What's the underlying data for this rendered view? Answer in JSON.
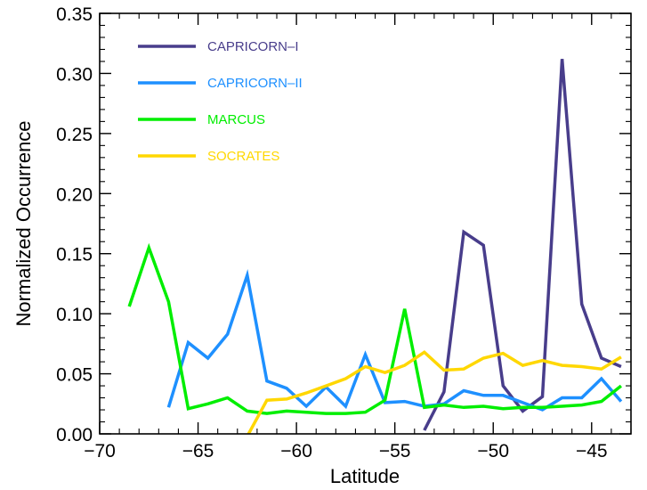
{
  "chart_data": {
    "type": "line",
    "xlabel": "Latitude",
    "ylabel": "Normalized Occurrence",
    "xlim": [
      -70,
      -43
    ],
    "ylim": [
      0,
      0.35
    ],
    "xticks": [
      "−70",
      "−65",
      "−60",
      "−55",
      "−50",
      "−45"
    ],
    "yticks": [
      "0.00",
      "0.05",
      "0.10",
      "0.15",
      "0.20",
      "0.25",
      "0.30",
      "0.35"
    ],
    "grid": false,
    "legend_position": "top-left",
    "series": [
      {
        "name": "CAPRICORN–I",
        "color": "#483d8b",
        "x": [
          -53.5,
          -52.5,
          -51.5,
          -50.5,
          -49.5,
          -48.5,
          -47.5,
          -46.5,
          -45.5,
          -44.5,
          -43.5
        ],
        "y": [
          0.003,
          0.035,
          0.168,
          0.157,
          0.04,
          0.019,
          0.031,
          0.312,
          0.108,
          0.063,
          0.056
        ]
      },
      {
        "name": "CAPRICORN–II",
        "color": "#1e90ff",
        "x": [
          -66.5,
          -65.5,
          -64.5,
          -63.5,
          -62.5,
          -61.5,
          -60.5,
          -59.5,
          -58.5,
          -57.5,
          -56.5,
          -55.5,
          -54.5,
          -53.5,
          -52.5,
          -51.5,
          -50.5,
          -49.5,
          -48.5,
          -47.5,
          -46.5,
          -45.5,
          -44.5,
          -43.5
        ],
        "y": [
          0.022,
          0.076,
          0.063,
          0.083,
          0.132,
          0.044,
          0.038,
          0.023,
          0.039,
          0.023,
          0.066,
          0.026,
          0.027,
          0.023,
          0.025,
          0.036,
          0.032,
          0.032,
          0.026,
          0.02,
          0.03,
          0.03,
          0.046,
          0.027
        ]
      },
      {
        "name": "MARCUS",
        "color": "#00ee00",
        "x": [
          -68.5,
          -67.5,
          -66.5,
          -65.5,
          -64.5,
          -63.5,
          -62.5,
          -61.5,
          -60.5,
          -59.5,
          -58.5,
          -57.5,
          -56.5,
          -55.5,
          -54.5,
          -53.5,
          -52.5,
          -51.5,
          -50.5,
          -49.5,
          -48.5,
          -47.5,
          -46.5,
          -45.5,
          -44.5,
          -43.5
        ],
        "y": [
          0.106,
          0.155,
          0.11,
          0.021,
          0.025,
          0.03,
          0.019,
          0.017,
          0.019,
          0.018,
          0.017,
          0.017,
          0.018,
          0.028,
          0.104,
          0.022,
          0.024,
          0.022,
          0.023,
          0.021,
          0.022,
          0.022,
          0.023,
          0.024,
          0.027,
          0.04
        ]
      },
      {
        "name": "SOCRATES",
        "color": "#ffd700",
        "x": [
          -62.5,
          -61.5,
          -60.5,
          -59.5,
          -58.5,
          -57.5,
          -56.5,
          -55.5,
          -54.5,
          -53.5,
          -52.5,
          -51.5,
          -50.5,
          -49.5,
          -48.5,
          -47.5,
          -46.5,
          -45.5,
          -44.5,
          -43.5
        ],
        "y": [
          -0.002,
          0.028,
          0.029,
          0.034,
          0.04,
          0.046,
          0.056,
          0.051,
          0.057,
          0.068,
          0.053,
          0.054,
          0.063,
          0.067,
          0.057,
          0.061,
          0.057,
          0.056,
          0.054,
          0.064
        ]
      }
    ]
  }
}
